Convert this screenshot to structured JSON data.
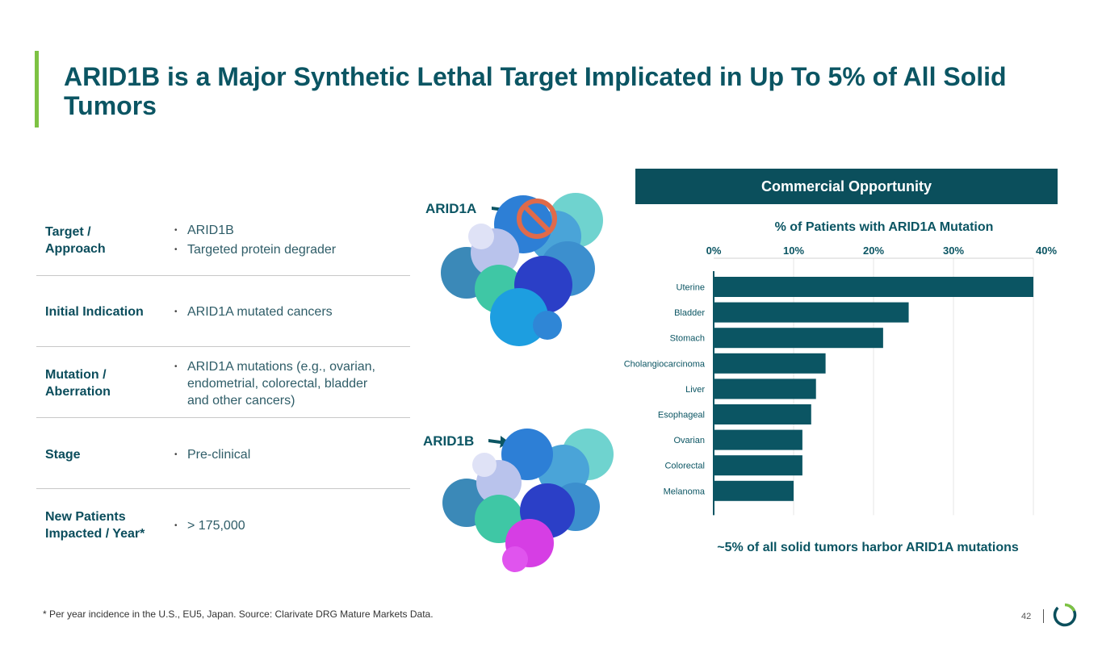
{
  "title": "ARID1B is a Major Synthetic Lethal Target Implicated in Up To 5% of All Solid Tumors",
  "colors": {
    "accent": "#7dc243",
    "primary": "#0b4f5c",
    "bar": "#0b5563",
    "no_sign": "#e06a4a"
  },
  "table": {
    "rows": [
      {
        "label": "Target / Approach",
        "bullets": [
          "ARID1B",
          "Targeted protein degrader"
        ]
      },
      {
        "label": "Initial Indication",
        "bullets": [
          "ARID1A mutated cancers"
        ]
      },
      {
        "label": "Mutation / Aberration",
        "bullets": [
          "ARID1A mutations (e.g., ovarian, endometrial, colorectal, bladder and other cancers)"
        ]
      },
      {
        "label": "Stage",
        "bullets": [
          "Pre-clinical"
        ]
      },
      {
        "label": "New Patients Impacted / Year*",
        "bullets": [
          "> 175,000"
        ]
      }
    ]
  },
  "proteins": {
    "top_label": "ARID1A",
    "bottom_label": "ARID1B",
    "top_icon": "no-symbol-icon"
  },
  "commercial": {
    "header": "Commercial Opportunity"
  },
  "chart_data": {
    "type": "bar",
    "orientation": "horizontal",
    "title": "% of Patients with ARID1A Mutation",
    "categories": [
      "Uterine",
      "Bladder",
      "Stomach",
      "Cholangiocarcinoma",
      "Liver",
      "Esophageal",
      "Ovarian",
      "Colorectal",
      "Melanoma"
    ],
    "values": [
      40,
      24.4,
      21.2,
      14,
      12.8,
      12.2,
      11.1,
      11.1,
      10
    ],
    "xlim": [
      0,
      40
    ],
    "ticks": [
      0,
      10,
      20,
      30,
      40
    ],
    "tick_labels": [
      "0%",
      "10%",
      "20%",
      "30%",
      "40%"
    ],
    "axis_position": "top",
    "grid": true,
    "xlabel": "",
    "ylabel": ""
  },
  "caption": "~5% of all solid tumors harbor ARID1A mutations",
  "footnote": "* Per year incidence in the U.S., EU5, Japan. Source: Clarivate DRG Mature Markets Data.",
  "page_number": "42"
}
